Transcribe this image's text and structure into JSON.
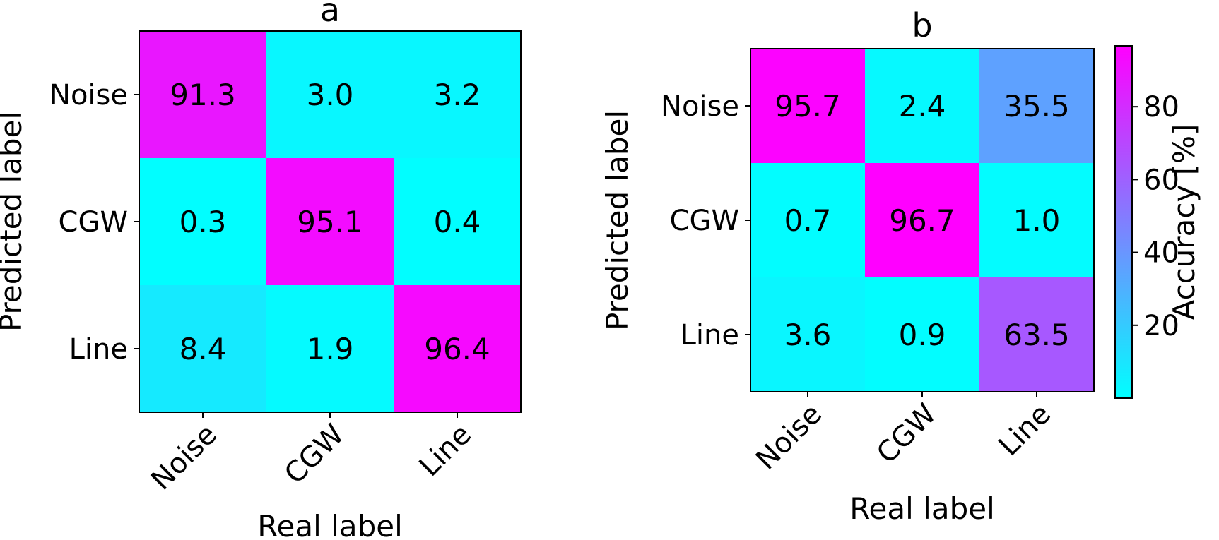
{
  "chart_data": [
    {
      "type": "heatmap",
      "title": "a",
      "xlabel": "Real label",
      "ylabel": "Predicted label",
      "x_categories": [
        "Noise",
        "CGW",
        "Line"
      ],
      "y_categories": [
        "Noise",
        "CGW",
        "Line"
      ],
      "values": [
        [
          91.3,
          3.0,
          3.2
        ],
        [
          0.3,
          95.1,
          0.4
        ],
        [
          8.4,
          1.9,
          96.4
        ]
      ],
      "value_range": [
        0,
        100
      ],
      "colormap": "cool"
    },
    {
      "type": "heatmap",
      "title": "b",
      "xlabel": "Real label",
      "ylabel": "Predicted label",
      "x_categories": [
        "Noise",
        "CGW",
        "Line"
      ],
      "y_categories": [
        "Noise",
        "CGW",
        "Line"
      ],
      "values": [
        [
          95.7,
          2.4,
          35.5
        ],
        [
          0.7,
          96.7,
          1.0
        ],
        [
          3.6,
          0.9,
          63.5
        ]
      ],
      "value_range": [
        0,
        96.7
      ],
      "colormap": "cool",
      "colorbar": {
        "label": "Accuracy [%]",
        "range": [
          0,
          96.7
        ],
        "ticks": [
          20,
          40,
          60,
          80
        ]
      }
    }
  ]
}
